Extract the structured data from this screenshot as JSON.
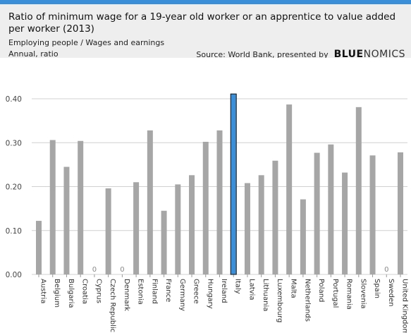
{
  "header": {
    "title": "Ratio of minimum wage for a 19-year old worker or an apprentice to value added per worker (2013)",
    "subtitle": "Employing people / Wages and earnings",
    "unit": "Annual, ratio",
    "source": "Source: World Bank, presented by",
    "brand_strong": "BLUE",
    "brand_rest": "NOMICS"
  },
  "colors": {
    "bar": "#a6a6a6",
    "highlight": "#3a8fd8",
    "header_bg": "#eeeeee",
    "accent_bar": "#3a8fd8"
  },
  "chart_data": {
    "type": "bar",
    "categories": [
      "Austria",
      "Belgium",
      "Bulgaria",
      "Croatia",
      "Cyprus",
      "Czech Republic",
      "Denmark",
      "Estonia",
      "Finland",
      "France",
      "Germany",
      "Greece",
      "Hungary",
      "Ireland",
      "Italy",
      "Latvia",
      "Lithuania",
      "Luxembourg",
      "Malta",
      "Netherlands",
      "Poland",
      "Portugal",
      "Romania",
      "Slovenia",
      "Spain",
      "Sweden",
      "United Kingdom"
    ],
    "values": [
      0.122,
      0.306,
      0.245,
      0.304,
      0,
      0.196,
      0,
      0.21,
      0.328,
      0.145,
      0.205,
      0.226,
      0.302,
      0.328,
      0.411,
      0.208,
      0.226,
      0.259,
      0.387,
      0.171,
      0.277,
      0.296,
      0.232,
      0.381,
      0.271,
      0,
      0.278
    ],
    "zero_labels": [
      "0",
      "0",
      "0"
    ],
    "highlight": "Italy",
    "ylim": [
      0,
      0.4
    ],
    "yticks": [
      "0.00",
      "0.10",
      "0.20",
      "0.30",
      "0.40"
    ],
    "grid": true
  }
}
